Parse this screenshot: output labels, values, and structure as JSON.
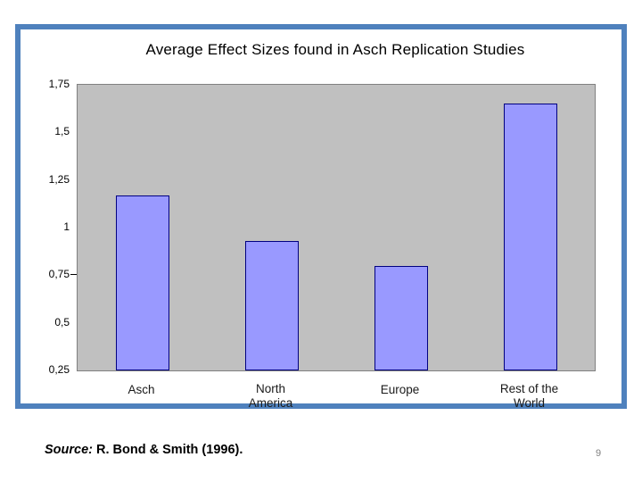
{
  "slide": {
    "source_label": "Source:",
    "source_text": " R. Bond & Smith (1996).",
    "page_number": "9"
  },
  "chart_data": {
    "type": "bar",
    "title": "Average Effect Sizes found in Asch Replication Studies",
    "categories": [
      "Asch",
      "North America",
      "Europe",
      "Rest of the World"
    ],
    "values": [
      1.17,
      0.93,
      0.8,
      1.65
    ],
    "xlabel": "",
    "ylabel": "",
    "ylim": [
      0.25,
      1.75
    ],
    "ytick_values": [
      1.75,
      1.5,
      1.25,
      1.0,
      0.75,
      0.5,
      0.25
    ],
    "ytick_labels": [
      "1,75",
      "1,5",
      "1,25",
      "1",
      "0,75",
      "0,5",
      "0,25"
    ],
    "visible_tick_marks": [
      0.75
    ],
    "decimal_separator": ",",
    "grid": false,
    "legend_position": "none",
    "bar_fill_color": "#9999FF",
    "bar_border_color": "#000080",
    "plot_background_color": "#C0C0C0",
    "plot_border_color": "#808080"
  },
  "colors": {
    "slide_border": "#4F81BD",
    "page_number_text": "#808080"
  }
}
